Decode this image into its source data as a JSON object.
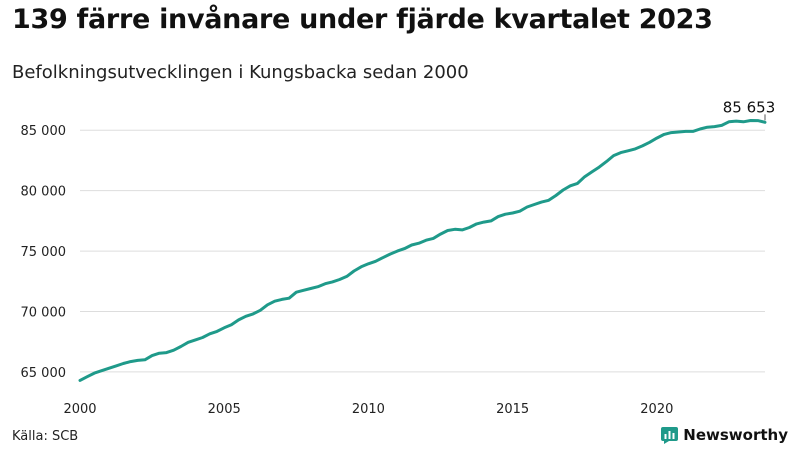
{
  "header": {
    "title": "139 färre invånare under fjärde kvartalet 2023",
    "subtitle": "Befolkningsutvecklingen i Kungsbacka sedan 2000"
  },
  "footer": {
    "source": "Källa: SCB",
    "brand": "Newsworthy"
  },
  "colors": {
    "line": "#1f9a8a",
    "grid": "#dddddd",
    "brand": "#1f9a8a"
  },
  "chart_data": {
    "type": "line",
    "title": "",
    "xlabel": "",
    "ylabel": "",
    "x_range": [
      2000.0,
      2023.75
    ],
    "ylim": [
      64000,
      87500
    ],
    "y_ticks": [
      65000,
      70000,
      75000,
      80000,
      85000
    ],
    "y_tick_labels": [
      "65 000",
      "70 000",
      "75 000",
      "80 000",
      "85 000"
    ],
    "x_ticks": [
      2000,
      2005,
      2010,
      2015,
      2020
    ],
    "x_tick_labels": [
      "2000",
      "2005",
      "2010",
      "2015",
      "2020"
    ],
    "grid": "horizontal",
    "end_label": "85 653",
    "series": [
      {
        "x": [
          2000.0,
          2000.25,
          2000.5,
          2000.75,
          2001.0,
          2001.25,
          2001.5,
          2001.75,
          2002.0,
          2002.25,
          2002.5,
          2002.75,
          2003.0,
          2003.25,
          2003.5,
          2003.75,
          2004.0,
          2004.25,
          2004.5,
          2004.75,
          2005.0,
          2005.25,
          2005.5,
          2005.75,
          2006.0,
          2006.25,
          2006.5,
          2006.75,
          2007.0,
          2007.25,
          2007.5,
          2007.75,
          2008.0,
          2008.25,
          2008.5,
          2008.75,
          2009.0,
          2009.25,
          2009.5,
          2009.75,
          2010.0,
          2010.25,
          2010.5,
          2010.75,
          2011.0,
          2011.25,
          2011.5,
          2011.75,
          2012.0,
          2012.25,
          2012.5,
          2012.75,
          2013.0,
          2013.25,
          2013.5,
          2013.75,
          2014.0,
          2014.25,
          2014.5,
          2014.75,
          2015.0,
          2015.25,
          2015.5,
          2015.75,
          2016.0,
          2016.25,
          2016.5,
          2016.75,
          2017.0,
          2017.25,
          2017.5,
          2017.75,
          2018.0,
          2018.25,
          2018.5,
          2018.75,
          2019.0,
          2019.25,
          2019.5,
          2019.75,
          2020.0,
          2020.25,
          2020.5,
          2020.75,
          2021.0,
          2021.25,
          2021.5,
          2021.75,
          2022.0,
          2022.25,
          2022.5,
          2022.75,
          2023.0,
          2023.25,
          2023.5,
          2023.75
        ],
        "values": [
          64300,
          64600,
          64900,
          65100,
          65300,
          65500,
          65700,
          65850,
          65950,
          66000,
          66350,
          66550,
          66600,
          66800,
          67100,
          67450,
          67650,
          67850,
          68150,
          68350,
          68650,
          68900,
          69300,
          69600,
          69800,
          70100,
          70550,
          70850,
          71000,
          71100,
          71600,
          71750,
          71900,
          72050,
          72300,
          72450,
          72650,
          72900,
          73350,
          73700,
          73950,
          74150,
          74450,
          74750,
          75000,
          75200,
          75500,
          75650,
          75900,
          76050,
          76400,
          76700,
          76800,
          76750,
          76950,
          77250,
          77400,
          77500,
          77850,
          78050,
          78150,
          78300,
          78650,
          78850,
          79050,
          79200,
          79600,
          80050,
          80400,
          80600,
          81150,
          81550,
          81950,
          82400,
          82900,
          83150,
          83300,
          83450,
          83700,
          84000,
          84350,
          84650,
          84800,
          84850,
          84900,
          84900,
          85100,
          85250,
          85300,
          85400,
          85700,
          85750,
          85700,
          85800,
          85792,
          85653
        ]
      }
    ]
  }
}
